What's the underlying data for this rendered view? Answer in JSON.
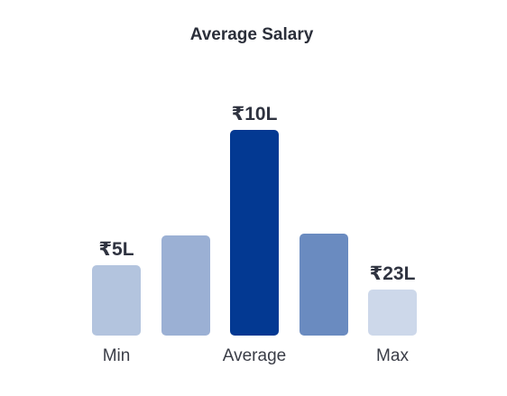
{
  "chart_data": {
    "type": "bar",
    "title": "Average Salary",
    "xlabel": "",
    "ylabel": "",
    "grid": false,
    "legend": "none",
    "bars": [
      {
        "category": "Min",
        "value_label": "₹5L",
        "color": "#b3c4de"
      },
      {
        "category": "",
        "value_label": "",
        "color": "#9bb0d4"
      },
      {
        "category": "Average",
        "value_label": "₹10L",
        "color": "#033992"
      },
      {
        "category": "",
        "value_label": "",
        "color": "#6a8bc0"
      },
      {
        "category": "Max",
        "value_label": "₹23L",
        "color": "#cdd8ea"
      }
    ]
  }
}
